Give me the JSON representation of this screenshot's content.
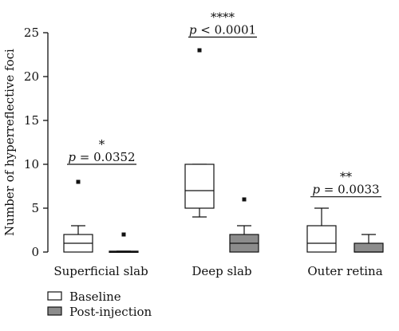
{
  "chart_data": {
    "type": "boxplot",
    "ylabel": "Number of hyperreflective foci",
    "ylim": [
      0,
      25
    ],
    "yticks": [
      0,
      5,
      10,
      15,
      20,
      25
    ],
    "categories": [
      "Superficial slab",
      "Deep slab",
      "Outer retina"
    ],
    "series": [
      {
        "name": "Baseline",
        "color": "#ffffff",
        "boxes": [
          {
            "min": 0,
            "q1": 0,
            "median": 1,
            "q3": 2,
            "max": 3,
            "outliers": [
              8
            ]
          },
          {
            "min": 4,
            "q1": 5,
            "median": 7,
            "q3": 10,
            "max": 10,
            "outliers": [
              23
            ]
          },
          {
            "min": 0,
            "q1": 0,
            "median": 1,
            "q3": 3,
            "max": 5,
            "outliers": []
          }
        ]
      },
      {
        "name": "Post-injection",
        "color": "#8c8c8c",
        "boxes": [
          {
            "min": 0,
            "q1": 0,
            "median": 0,
            "q3": 0.1,
            "max": 0.1,
            "outliers": [
              2
            ]
          },
          {
            "min": 0,
            "q1": 0,
            "median": 1,
            "q3": 2,
            "max": 3,
            "outliers": [
              6
            ]
          },
          {
            "min": 0,
            "q1": 0,
            "median": 0,
            "q3": 1,
            "max": 2,
            "outliers": []
          }
        ]
      }
    ],
    "annotations": [
      {
        "category": "Superficial slab",
        "stars": "*",
        "p_text": "p = 0.0352",
        "bar_y": 10.0
      },
      {
        "category": "Deep slab",
        "stars": "****",
        "p_text": "p < 0.0001",
        "bar_y": 24.5
      },
      {
        "category": "Outer retina",
        "stars": "**",
        "p_text": "p = 0.0033",
        "bar_y": 6.3
      }
    ],
    "legend": {
      "placement": "bottom-left"
    }
  }
}
